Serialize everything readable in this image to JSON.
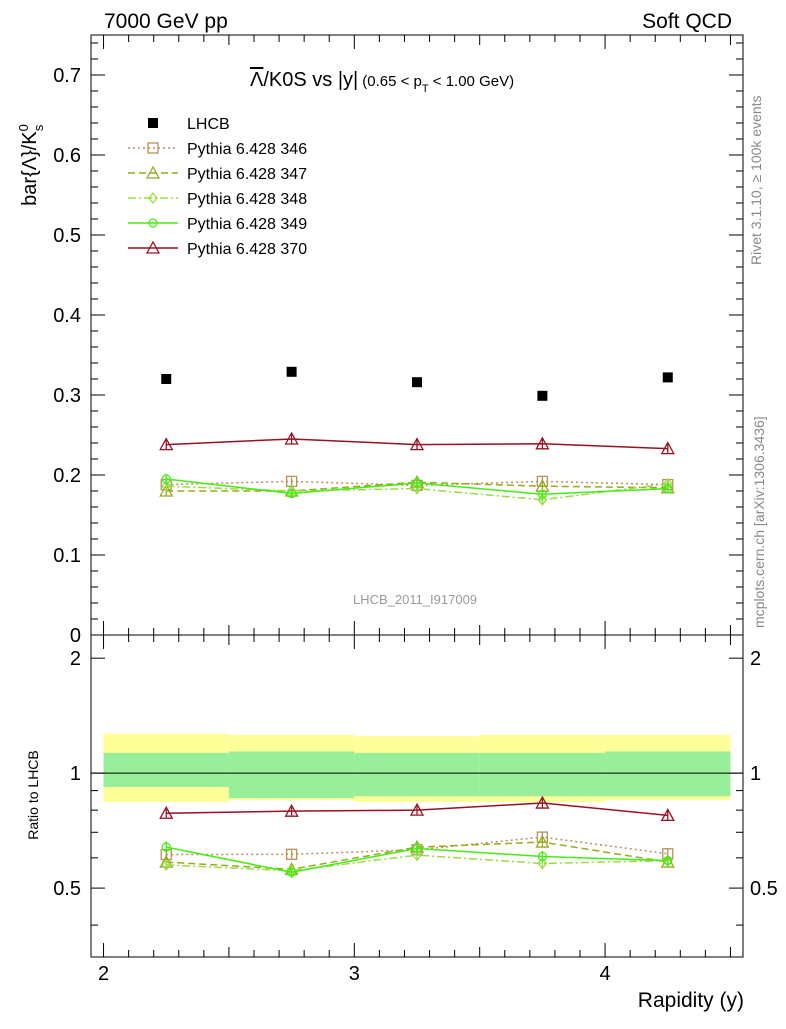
{
  "header": {
    "left": "7000 GeV pp",
    "right": "Soft QCD"
  },
  "side_labels": {
    "rivet": "Rivet 3.1.10, ≥ 100k events",
    "mcplots": "mcplots.cern.ch [arXiv:1306.3436]"
  },
  "watermark": "LHCB_2011_I917009",
  "chart_data": {
    "type": "scatter",
    "title": "Λ̅/K0S vs |y| (0.65 < pT < 1.00 GeV)",
    "title_main": "/K0S vs |y|",
    "title_lambda": "Λ",
    "title_cut_prefix": "(0.65 < p",
    "title_cut_sub": "T",
    "title_cut_suffix": " < 1.00 GeV)",
    "ylabel": "bar{Λ}/K",
    "ylabel_sup": "0",
    "ylabel_sub": "s",
    "xlabel": "Rapidity (y)",
    "ratio_ylabel": "Ratio to LHCB",
    "xlim": [
      1.95,
      4.55
    ],
    "ylim": [
      0,
      0.75
    ],
    "ratio_ylim": [
      0.33,
      2.3
    ],
    "x": [
      2.25,
      2.75,
      3.25,
      3.75,
      4.25
    ],
    "bin_edges": [
      2.0,
      2.5,
      3.0,
      3.5,
      4.0,
      4.5
    ],
    "main_yticks": [
      0,
      0.1,
      0.2,
      0.3,
      0.4,
      0.5,
      0.6,
      0.7
    ],
    "main_ytick_labels": [
      "0",
      "0.1",
      "0.2",
      "0.3",
      "0.4",
      "0.5",
      "0.6",
      "0.7"
    ],
    "ratio_yticks": [
      0.5,
      1,
      2
    ],
    "ratio_ytick_labels": [
      "0.5",
      "1",
      "2"
    ],
    "xticks": [
      2,
      3,
      4
    ],
    "xtick_labels": [
      "2",
      "3",
      "4"
    ],
    "data": {
      "name": "LHCB",
      "values": [
        0.32,
        0.329,
        0.316,
        0.299,
        0.322
      ],
      "color": "#000000"
    },
    "band_inner": [
      1.13,
      1.14,
      1.13,
      1.13,
      1.14
    ],
    "band_inner_low": [
      0.92,
      0.86,
      0.87,
      0.87,
      0.87
    ],
    "band_outer": [
      1.27,
      1.26,
      1.25,
      1.26,
      1.26
    ],
    "band_outer_low": [
      0.84,
      0.85,
      0.84,
      0.84,
      0.85
    ],
    "band_inner_color": "#99ee99",
    "band_outer_color": "#ffff99",
    "series": [
      {
        "name": "Pythia 6.428 346",
        "color": "#b8905a",
        "marker": "square",
        "dash": "2,3",
        "values": [
          0.188,
          0.192,
          0.187,
          0.192,
          0.188
        ],
        "errors": [
          0.006,
          0.005,
          0.006,
          0.006,
          0.006
        ],
        "ratio": [
          0.612,
          0.613,
          0.63,
          0.68,
          0.615
        ]
      },
      {
        "name": "Pythia 6.428 347",
        "color": "#99aa22",
        "marker": "triangle",
        "dash": "7,4",
        "values": [
          0.18,
          0.18,
          0.191,
          0.186,
          0.184
        ],
        "errors": [
          0.006,
          0.005,
          0.006,
          0.006,
          0.006
        ],
        "ratio": [
          0.585,
          0.56,
          0.64,
          0.66,
          0.585
        ]
      },
      {
        "name": "Pythia 6.428 348",
        "color": "#99dd44",
        "marker": "diamond",
        "dash": "8,3,2,3",
        "values": [
          0.186,
          0.18,
          0.183,
          0.169,
          0.189
        ],
        "errors": [
          0.006,
          0.005,
          0.006,
          0.006,
          0.006
        ],
        "ratio": [
          0.575,
          0.555,
          0.61,
          0.58,
          0.59
        ]
      },
      {
        "name": "Pythia 6.428 349",
        "color": "#44ee11",
        "marker": "circle",
        "dash": "",
        "values": [
          0.195,
          0.177,
          0.19,
          0.176,
          0.183
        ],
        "errors": [
          0.007,
          0.006,
          0.007,
          0.006,
          0.006
        ],
        "ratio": [
          0.64,
          0.55,
          0.635,
          0.605,
          0.59
        ]
      },
      {
        "name": "Pythia 6.428 370",
        "color": "#991122",
        "marker": "triangle",
        "dash": "",
        "values": [
          0.238,
          0.245,
          0.238,
          0.239,
          0.233
        ],
        "errors": [
          0.006,
          0.006,
          0.006,
          0.007,
          0.007
        ],
        "ratio": [
          0.785,
          0.795,
          0.8,
          0.835,
          0.775
        ]
      }
    ]
  }
}
